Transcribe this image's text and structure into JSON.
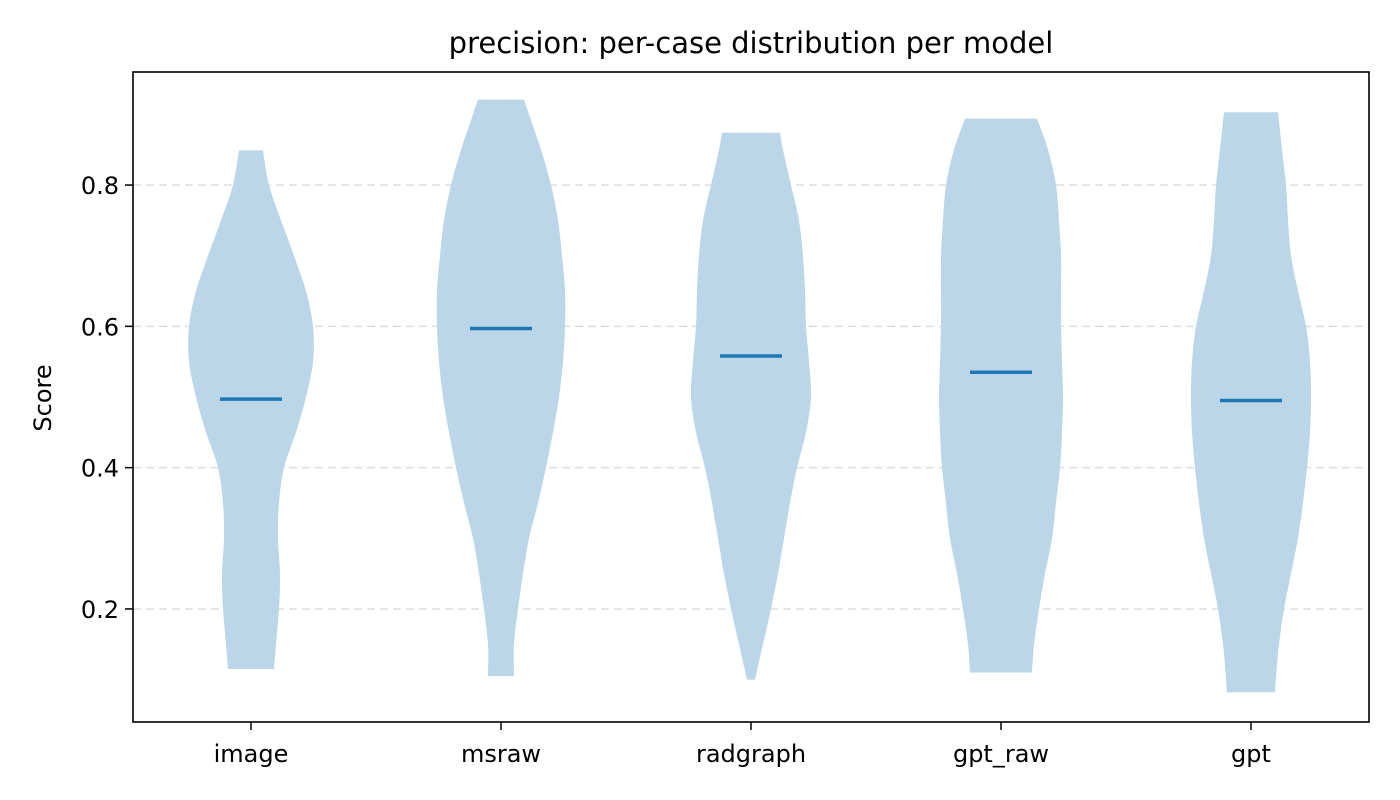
{
  "chart_data": {
    "type": "violin",
    "title": "precision: per-case distribution per model",
    "xlabel": "",
    "ylabel": "Score",
    "categories": [
      "image",
      "msraw",
      "radgraph",
      "gpt_raw",
      "gpt"
    ],
    "ylim": [
      0.04,
      0.96
    ],
    "yticks": [
      0.2,
      0.4,
      0.6,
      0.8
    ],
    "ytick_labels": [
      "0.2",
      "0.4",
      "0.6",
      "0.8"
    ],
    "grid": "y-dashed",
    "colors": {
      "body": "#bad6e8",
      "median": "#1f77b4",
      "grid": "#dddddd",
      "axis": "#000000"
    },
    "series": [
      {
        "category": "image",
        "median": 0.497,
        "min": 0.115,
        "max": 0.849,
        "profile": [
          [
            0.115,
            0.023
          ],
          [
            0.15,
            0.025
          ],
          [
            0.2,
            0.028
          ],
          [
            0.25,
            0.029
          ],
          [
            0.3,
            0.027
          ],
          [
            0.35,
            0.028
          ],
          [
            0.4,
            0.033
          ],
          [
            0.45,
            0.045
          ],
          [
            0.5,
            0.055
          ],
          [
            0.55,
            0.062
          ],
          [
            0.6,
            0.062
          ],
          [
            0.65,
            0.055
          ],
          [
            0.7,
            0.043
          ],
          [
            0.75,
            0.03
          ],
          [
            0.8,
            0.018
          ],
          [
            0.849,
            0.012
          ]
        ]
      },
      {
        "category": "msraw",
        "median": 0.597,
        "min": 0.105,
        "max": 0.921,
        "profile": [
          [
            0.105,
            0.013
          ],
          [
            0.15,
            0.013
          ],
          [
            0.2,
            0.017
          ],
          [
            0.25,
            0.022
          ],
          [
            0.3,
            0.028
          ],
          [
            0.35,
            0.037
          ],
          [
            0.4,
            0.045
          ],
          [
            0.45,
            0.052
          ],
          [
            0.5,
            0.058
          ],
          [
            0.55,
            0.062
          ],
          [
            0.6,
            0.064
          ],
          [
            0.65,
            0.064
          ],
          [
            0.7,
            0.061
          ],
          [
            0.75,
            0.057
          ],
          [
            0.8,
            0.05
          ],
          [
            0.85,
            0.04
          ],
          [
            0.9,
            0.028
          ],
          [
            0.921,
            0.023
          ]
        ]
      },
      {
        "category": "radgraph",
        "median": 0.558,
        "min": 0.1,
        "max": 0.874,
        "profile": [
          [
            0.1,
            0.004
          ],
          [
            0.15,
            0.012
          ],
          [
            0.2,
            0.02
          ],
          [
            0.25,
            0.027
          ],
          [
            0.3,
            0.033
          ],
          [
            0.35,
            0.039
          ],
          [
            0.4,
            0.046
          ],
          [
            0.45,
            0.055
          ],
          [
            0.5,
            0.06
          ],
          [
            0.55,
            0.058
          ],
          [
            0.6,
            0.055
          ],
          [
            0.65,
            0.054
          ],
          [
            0.7,
            0.052
          ],
          [
            0.75,
            0.048
          ],
          [
            0.8,
            0.04
          ],
          [
            0.85,
            0.032
          ],
          [
            0.874,
            0.029
          ]
        ]
      },
      {
        "category": "gpt_raw",
        "median": 0.535,
        "min": 0.11,
        "max": 0.894,
        "profile": [
          [
            0.11,
            0.031
          ],
          [
            0.15,
            0.033
          ],
          [
            0.2,
            0.038
          ],
          [
            0.25,
            0.044
          ],
          [
            0.3,
            0.051
          ],
          [
            0.35,
            0.055
          ],
          [
            0.4,
            0.059
          ],
          [
            0.45,
            0.061
          ],
          [
            0.5,
            0.062
          ],
          [
            0.55,
            0.061
          ],
          [
            0.6,
            0.06
          ],
          [
            0.65,
            0.06
          ],
          [
            0.7,
            0.06
          ],
          [
            0.75,
            0.058
          ],
          [
            0.8,
            0.055
          ],
          [
            0.85,
            0.047
          ],
          [
            0.894,
            0.036
          ]
        ]
      },
      {
        "category": "gpt",
        "median": 0.495,
        "min": 0.082,
        "max": 0.903,
        "profile": [
          [
            0.082,
            0.024
          ],
          [
            0.12,
            0.026
          ],
          [
            0.15,
            0.028
          ],
          [
            0.2,
            0.033
          ],
          [
            0.25,
            0.04
          ],
          [
            0.3,
            0.047
          ],
          [
            0.35,
            0.052
          ],
          [
            0.4,
            0.056
          ],
          [
            0.45,
            0.059
          ],
          [
            0.5,
            0.06
          ],
          [
            0.55,
            0.059
          ],
          [
            0.6,
            0.055
          ],
          [
            0.65,
            0.047
          ],
          [
            0.7,
            0.04
          ],
          [
            0.75,
            0.037
          ],
          [
            0.8,
            0.035
          ],
          [
            0.85,
            0.031
          ],
          [
            0.903,
            0.027
          ]
        ]
      }
    ]
  }
}
